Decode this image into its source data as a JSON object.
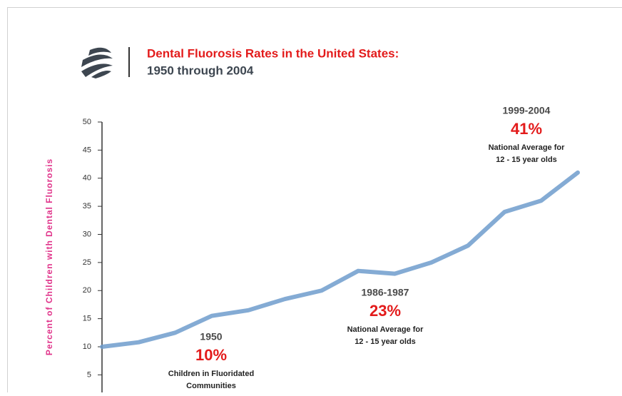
{
  "chart_data": {
    "type": "line",
    "title": "Dental Fluorosis Rates in the United States:",
    "subtitle": "1950 through 2004",
    "y_label": "Percent of Children with Dental Fluorosis",
    "categories": [
      null,
      null,
      null,
      null,
      null,
      null,
      null,
      null,
      null,
      null,
      null,
      null,
      null,
      null
    ],
    "series": [
      {
        "name": null,
        "color": "#6f9ccc",
        "values": [
          10,
          10.8,
          12.5,
          15.5,
          16.5,
          18.5,
          20,
          23.5,
          23,
          25,
          28,
          34,
          36,
          41
        ]
      }
    ],
    "ylim": [
      0,
      50
    ],
    "yticks": [
      5,
      10,
      15,
      20,
      25,
      30,
      35,
      40,
      45,
      50
    ],
    "annotations": [
      {
        "label": "1950",
        "value_label": "10%",
        "text": [
          "Children in Fluoridated",
          "Communities"
        ]
      },
      {
        "label": "1986-1987",
        "value_label": "23%",
        "text": [
          "National Average for",
          "12 - 15 year olds"
        ]
      },
      {
        "label": "1999-2004",
        "value_label": "41%",
        "text": [
          "National Average for",
          "12 - 15 year olds"
        ]
      }
    ]
  }
}
